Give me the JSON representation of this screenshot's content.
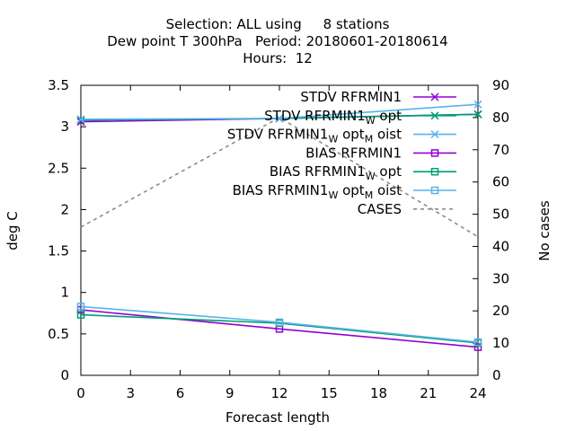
{
  "chart_data": {
    "type": "line",
    "title_lines": [
      "Selection: ALL using     8 stations",
      "Dew point T 300hPa   Period: 20180601-20180614",
      "Hours:  12"
    ],
    "xlabel": "Forecast length",
    "ylabel": "deg C",
    "y2label": "No cases",
    "x_ticks": [
      0,
      3,
      6,
      9,
      12,
      15,
      18,
      21,
      24
    ],
    "xlim": [
      0,
      24
    ],
    "y_ticks": [
      0,
      0.5,
      1,
      1.5,
      2,
      2.5,
      3,
      3.5
    ],
    "ylim": [
      0,
      3.5
    ],
    "y2_ticks": [
      0,
      10,
      20,
      30,
      40,
      50,
      60,
      70,
      80,
      90
    ],
    "y2lim": [
      0,
      90
    ],
    "legend_position": "top-right",
    "series": [
      {
        "name": "STDV RFRMIN1",
        "legend_main": "STDV RFRMIN1",
        "legend_sub": [],
        "axis": "y",
        "color": "#9400d3",
        "marker": "x",
        "x": [
          0,
          12,
          24
        ],
        "values": [
          3.06,
          3.1,
          3.15
        ]
      },
      {
        "name": "STDV RFRMIN1_W opt",
        "legend_main": "STDV RFRMIN1",
        "legend_sub": [
          [
            "W",
            " opt"
          ]
        ],
        "axis": "y",
        "color": "#009e73",
        "marker": "x",
        "x": [
          0,
          12,
          24
        ],
        "values": [
          3.08,
          3.1,
          3.15
        ]
      },
      {
        "name": "STDV RFRMIN1_W opt_M oist",
        "legend_main": "STDV RFRMIN1",
        "legend_sub": [
          [
            "W",
            " opt"
          ],
          [
            "M",
            " oist"
          ]
        ],
        "axis": "y",
        "color": "#56b4e9",
        "marker": "x",
        "x": [
          0,
          12,
          24
        ],
        "values": [
          3.09,
          3.1,
          3.27
        ]
      },
      {
        "name": "BIAS RFRMIN1",
        "legend_main": "BIAS RFRMIN1",
        "legend_sub": [],
        "axis": "y",
        "color": "#9400d3",
        "marker": "square",
        "x": [
          0,
          12,
          24
        ],
        "values": [
          0.79,
          0.56,
          0.34
        ]
      },
      {
        "name": "BIAS RFRMIN1_W opt",
        "legend_main": "BIAS RFRMIN1",
        "legend_sub": [
          [
            "W",
            " opt"
          ]
        ],
        "axis": "y",
        "color": "#009e73",
        "marker": "square",
        "x": [
          0,
          12,
          24
        ],
        "values": [
          0.73,
          0.63,
          0.39
        ]
      },
      {
        "name": "BIAS RFRMIN1_W opt_M oist",
        "legend_main": "BIAS RFRMIN1",
        "legend_sub": [
          [
            "W",
            " opt"
          ],
          [
            "M",
            " oist"
          ]
        ],
        "axis": "y",
        "color": "#56b4e9",
        "marker": "square",
        "x": [
          0,
          12,
          24
        ],
        "values": [
          0.83,
          0.64,
          0.4
        ]
      },
      {
        "name": "CASES",
        "legend_main": "CASES",
        "legend_sub": [],
        "axis": "y2",
        "color": "#8c8c8c",
        "marker": "none",
        "dashed": true,
        "x": [
          0,
          12,
          24
        ],
        "values": [
          46,
          80,
          43
        ]
      }
    ]
  }
}
